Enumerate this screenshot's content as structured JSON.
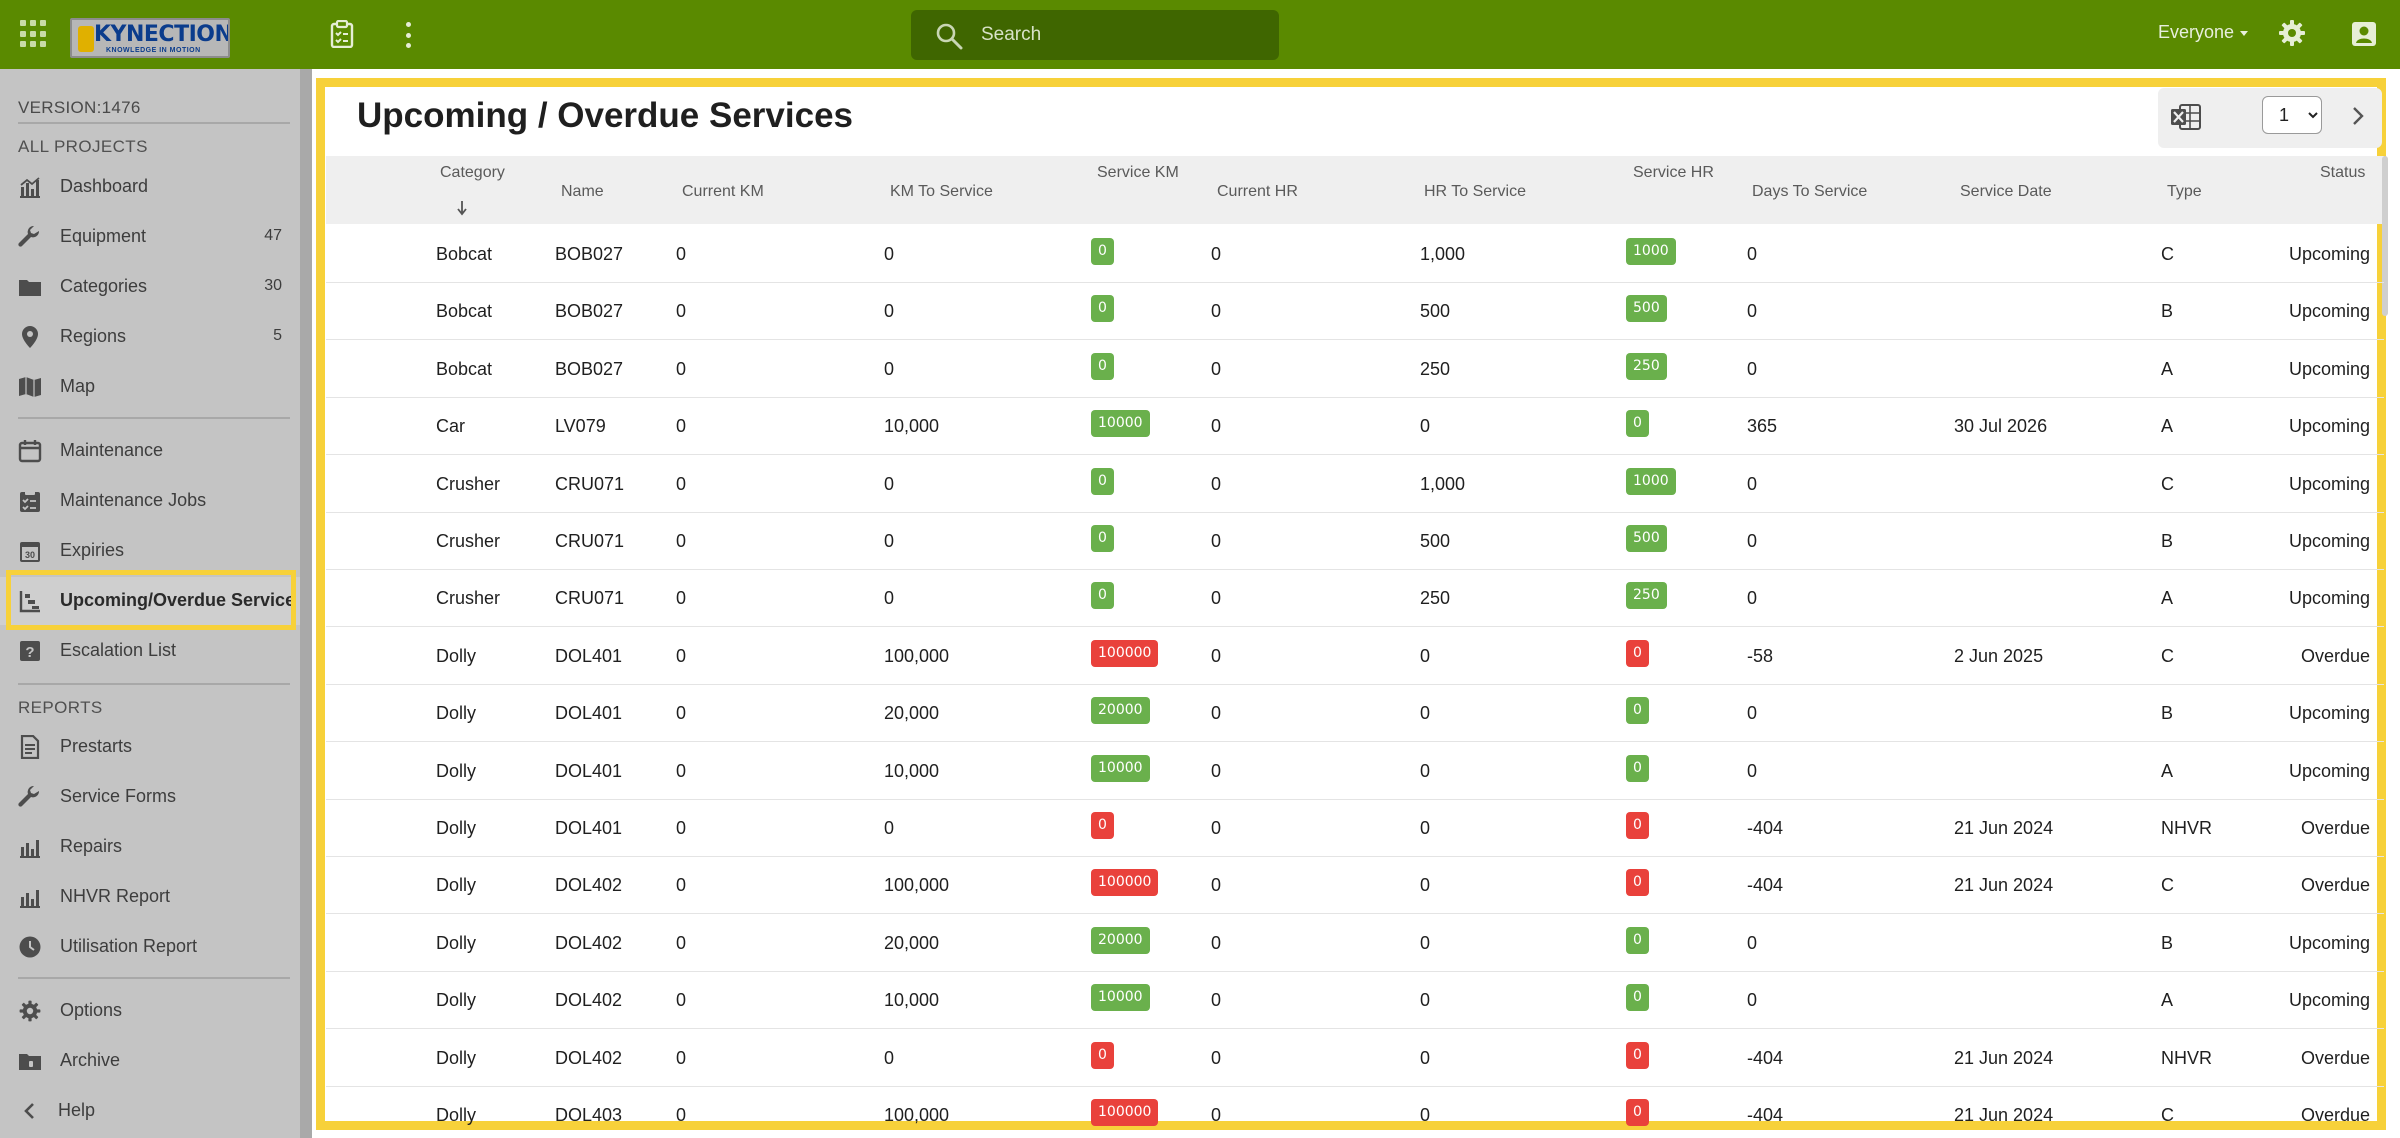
{
  "header": {
    "logo_text": "KYNECTION",
    "logo_tagline": "KNOWLEDGE IN MOTION",
    "search_placeholder": "Search",
    "user_scope": "Everyone"
  },
  "sidebar": {
    "version": "VERSION:1476",
    "section_projects": "ALL PROJECTS",
    "section_reports": "REPORTS",
    "nav": {
      "dashboard": "Dashboard",
      "equipment": "Equipment",
      "equipment_count": "47",
      "categories": "Categories",
      "categories_count": "30",
      "regions": "Regions",
      "regions_count": "5",
      "map": "Map",
      "maintenance": "Maintenance",
      "maintenance_jobs": "Maintenance Jobs",
      "expiries": "Expiries",
      "upcoming_overdue": "Upcoming/Overdue Service",
      "escalation": "Escalation List",
      "prestarts": "Prestarts",
      "service_forms": "Service Forms",
      "repairs": "Repairs",
      "nhvr_report": "NHVR Report",
      "utilisation_report": "Utilisation Report",
      "options": "Options",
      "archive": "Archive",
      "help": "Help"
    }
  },
  "main": {
    "title": "Upcoming / Overdue Services",
    "page_value": "1",
    "columns": {
      "category": "Category",
      "name": "Name",
      "current_km": "Current KM",
      "km_to_service": "KM To Service",
      "service_km": "Service KM",
      "current_hr": "Current HR",
      "hr_to_service": "HR To Service",
      "service_hr": "Service HR",
      "days_to_service": "Days To Service",
      "service_date": "Service Date",
      "type": "Type",
      "status": "Status"
    },
    "rows": [
      {
        "category": "Bobcat",
        "name": "BOB027",
        "current_km": "0",
        "km_to_service": "0",
        "service_km": "0",
        "service_km_color": "#6ab04c",
        "current_hr": "0",
        "hr_to_service": "1,000",
        "service_hr": "1000",
        "service_hr_color": "#6ab04c",
        "days": "0",
        "service_date": "",
        "type": "C",
        "status": "Upcoming"
      },
      {
        "category": "Bobcat",
        "name": "BOB027",
        "current_km": "0",
        "km_to_service": "0",
        "service_km": "0",
        "service_km_color": "#6ab04c",
        "current_hr": "0",
        "hr_to_service": "500",
        "service_hr": "500",
        "service_hr_color": "#6ab04c",
        "days": "0",
        "service_date": "",
        "type": "B",
        "status": "Upcoming"
      },
      {
        "category": "Bobcat",
        "name": "BOB027",
        "current_km": "0",
        "km_to_service": "0",
        "service_km": "0",
        "service_km_color": "#6ab04c",
        "current_hr": "0",
        "hr_to_service": "250",
        "service_hr": "250",
        "service_hr_color": "#6ab04c",
        "days": "0",
        "service_date": "",
        "type": "A",
        "status": "Upcoming"
      },
      {
        "category": "Car",
        "name": "LV079",
        "current_km": "0",
        "km_to_service": "10,000",
        "service_km": "10000",
        "service_km_color": "#6ab04c",
        "current_hr": "0",
        "hr_to_service": "0",
        "service_hr": "0",
        "service_hr_color": "#6ab04c",
        "days": "365",
        "service_date": "30 Jul 2026",
        "type": "A",
        "status": "Upcoming"
      },
      {
        "category": "Crusher",
        "name": "CRU071",
        "current_km": "0",
        "km_to_service": "0",
        "service_km": "0",
        "service_km_color": "#6ab04c",
        "current_hr": "0",
        "hr_to_service": "1,000",
        "service_hr": "1000",
        "service_hr_color": "#6ab04c",
        "days": "0",
        "service_date": "",
        "type": "C",
        "status": "Upcoming"
      },
      {
        "category": "Crusher",
        "name": "CRU071",
        "current_km": "0",
        "km_to_service": "0",
        "service_km": "0",
        "service_km_color": "#6ab04c",
        "current_hr": "0",
        "hr_to_service": "500",
        "service_hr": "500",
        "service_hr_color": "#6ab04c",
        "days": "0",
        "service_date": "",
        "type": "B",
        "status": "Upcoming"
      },
      {
        "category": "Crusher",
        "name": "CRU071",
        "current_km": "0",
        "km_to_service": "0",
        "service_km": "0",
        "service_km_color": "#6ab04c",
        "current_hr": "0",
        "hr_to_service": "250",
        "service_hr": "250",
        "service_hr_color": "#6ab04c",
        "days": "0",
        "service_date": "",
        "type": "A",
        "status": "Upcoming"
      },
      {
        "category": "Dolly",
        "name": "DOL401",
        "current_km": "0",
        "km_to_service": "100,000",
        "service_km": "100000",
        "service_km_color": "#e9413b",
        "current_hr": "0",
        "hr_to_service": "0",
        "service_hr": "0",
        "service_hr_color": "#e9413b",
        "days": "-58",
        "service_date": "2 Jun 2025",
        "type": "C",
        "status": "Overdue"
      },
      {
        "category": "Dolly",
        "name": "DOL401",
        "current_km": "0",
        "km_to_service": "20,000",
        "service_km": "20000",
        "service_km_color": "#6ab04c",
        "current_hr": "0",
        "hr_to_service": "0",
        "service_hr": "0",
        "service_hr_color": "#6ab04c",
        "days": "0",
        "service_date": "",
        "type": "B",
        "status": "Upcoming"
      },
      {
        "category": "Dolly",
        "name": "DOL401",
        "current_km": "0",
        "km_to_service": "10,000",
        "service_km": "10000",
        "service_km_color": "#6ab04c",
        "current_hr": "0",
        "hr_to_service": "0",
        "service_hr": "0",
        "service_hr_color": "#6ab04c",
        "days": "0",
        "service_date": "",
        "type": "A",
        "status": "Upcoming"
      },
      {
        "category": "Dolly",
        "name": "DOL401",
        "current_km": "0",
        "km_to_service": "0",
        "service_km": "0",
        "service_km_color": "#e9413b",
        "current_hr": "0",
        "hr_to_service": "0",
        "service_hr": "0",
        "service_hr_color": "#e9413b",
        "days": "-404",
        "service_date": "21 Jun 2024",
        "type": "NHVR",
        "status": "Overdue"
      },
      {
        "category": "Dolly",
        "name": "DOL402",
        "current_km": "0",
        "km_to_service": "100,000",
        "service_km": "100000",
        "service_km_color": "#e9413b",
        "current_hr": "0",
        "hr_to_service": "0",
        "service_hr": "0",
        "service_hr_color": "#e9413b",
        "days": "-404",
        "service_date": "21 Jun 2024",
        "type": "C",
        "status": "Overdue"
      },
      {
        "category": "Dolly",
        "name": "DOL402",
        "current_km": "0",
        "km_to_service": "20,000",
        "service_km": "20000",
        "service_km_color": "#6ab04c",
        "current_hr": "0",
        "hr_to_service": "0",
        "service_hr": "0",
        "service_hr_color": "#6ab04c",
        "days": "0",
        "service_date": "",
        "type": "B",
        "status": "Upcoming"
      },
      {
        "category": "Dolly",
        "name": "DOL402",
        "current_km": "0",
        "km_to_service": "10,000",
        "service_km": "10000",
        "service_km_color": "#6ab04c",
        "current_hr": "0",
        "hr_to_service": "0",
        "service_hr": "0",
        "service_hr_color": "#6ab04c",
        "days": "0",
        "service_date": "",
        "type": "A",
        "status": "Upcoming"
      },
      {
        "category": "Dolly",
        "name": "DOL402",
        "current_km": "0",
        "km_to_service": "0",
        "service_km": "0",
        "service_km_color": "#e9413b",
        "current_hr": "0",
        "hr_to_service": "0",
        "service_hr": "0",
        "service_hr_color": "#e9413b",
        "days": "-404",
        "service_date": "21 Jun 2024",
        "type": "NHVR",
        "status": "Overdue"
      },
      {
        "category": "Dolly",
        "name": "DOL403",
        "current_km": "0",
        "km_to_service": "100,000",
        "service_km": "100000",
        "service_km_color": "#e9413b",
        "current_hr": "0",
        "hr_to_service": "0",
        "service_hr": "0",
        "service_hr_color": "#e9413b",
        "days": "-404",
        "service_date": "21 Jun 2024",
        "type": "C",
        "status": "Overdue"
      }
    ]
  }
}
